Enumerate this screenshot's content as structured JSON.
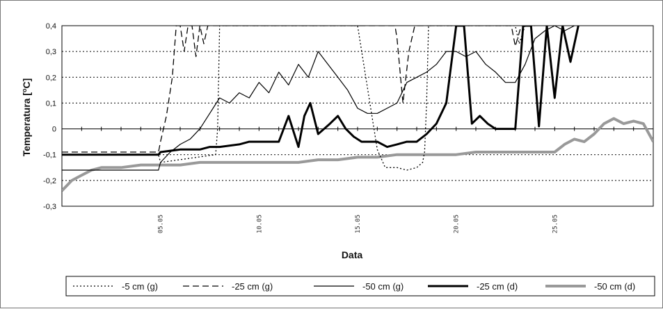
{
  "chart_data": {
    "type": "line",
    "xlabel": "Data",
    "ylabel_main": "Temperatura [",
    "ylabel_sup": "o",
    "ylabel_end": "C]",
    "ylim": [
      -0.3,
      0.4
    ],
    "xlim": [
      0,
      30
    ],
    "y_ticks": [
      {
        "value": 0.4,
        "label": "0,4"
      },
      {
        "value": 0.3,
        "label": "0,3"
      },
      {
        "value": 0.2,
        "label": "0,2"
      },
      {
        "value": 0.1,
        "label": "0,1"
      },
      {
        "value": 0.0,
        "label": "0"
      },
      {
        "value": -0.1,
        "label": "-0,1"
      },
      {
        "value": -0.2,
        "label": "-0,2"
      },
      {
        "value": -0.3,
        "label": "-0,3"
      }
    ],
    "x_ticks": [
      {
        "x": 5,
        "label": "05.05"
      },
      {
        "x": 10,
        "label": "10.05"
      },
      {
        "x": 15,
        "label": "15.05"
      },
      {
        "x": 20,
        "label": "20.05"
      },
      {
        "x": 25,
        "label": "25.05"
      }
    ],
    "grid": "horizontal-dotted",
    "legend_position": "bottom",
    "series": [
      {
        "name": "-5 cm (g)",
        "style": "dotted",
        "color": "#000000",
        "x": [
          0,
          4.9,
          5.0,
          7.8,
          7.9,
          8.0,
          14.9,
          15.0,
          16.0,
          16.4,
          17.0,
          17.5,
          18.0,
          18.3,
          18.4,
          18.5,
          18.6,
          23.0,
          23.2,
          23.5,
          24.0
        ],
        "y": [
          -0.1,
          -0.1,
          -0.13,
          -0.1,
          0.0,
          0.4,
          0.4,
          0.4,
          -0.08,
          -0.15,
          -0.15,
          -0.16,
          -0.15,
          -0.13,
          -0.09,
          0.1,
          0.4,
          0.4,
          0.33,
          0.4,
          0.4
        ]
      },
      {
        "name": "-25 cm (g)",
        "style": "dashed",
        "color": "#000000",
        "x": [
          0,
          4.9,
          5.0,
          5.3,
          5.6,
          5.8,
          6.0,
          6.2,
          6.4,
          6.6,
          6.8,
          7.0,
          7.2,
          7.4,
          16.9,
          17.0,
          17.3,
          17.6,
          17.9,
          22.8,
          23.0,
          23.3,
          23.6
        ],
        "y": [
          -0.09,
          -0.09,
          -0.05,
          0.05,
          0.2,
          0.4,
          0.4,
          0.3,
          0.4,
          0.4,
          0.28,
          0.4,
          0.33,
          0.4,
          0.4,
          0.35,
          0.1,
          0.3,
          0.4,
          0.4,
          0.32,
          0.4,
          0.4
        ]
      },
      {
        "name": "-50 cm (g)",
        "style": "solid",
        "color": "#000000",
        "x": [
          0,
          4.9,
          5.0,
          5.5,
          6.0,
          6.5,
          7.0,
          7.5,
          8.0,
          8.5,
          9.0,
          9.5,
          10.0,
          10.5,
          11.0,
          11.5,
          12.0,
          12.5,
          13.0,
          13.5,
          14.0,
          14.5,
          15.0,
          15.5,
          16.0,
          16.5,
          17.0,
          17.5,
          18.0,
          18.5,
          19.0,
          19.5,
          20.0,
          20.5,
          21.0,
          21.5,
          22.0,
          22.5,
          23.0,
          23.5,
          24.0,
          24.5,
          25.0,
          25.5,
          26.0
        ],
        "y": [
          -0.16,
          -0.16,
          -0.13,
          -0.09,
          -0.06,
          -0.04,
          0.0,
          0.06,
          0.12,
          0.1,
          0.14,
          0.12,
          0.18,
          0.14,
          0.22,
          0.17,
          0.25,
          0.2,
          0.3,
          0.25,
          0.2,
          0.15,
          0.08,
          0.06,
          0.06,
          0.08,
          0.1,
          0.18,
          0.2,
          0.22,
          0.25,
          0.3,
          0.3,
          0.28,
          0.3,
          0.25,
          0.22,
          0.18,
          0.18,
          0.25,
          0.35,
          0.38,
          0.4,
          0.38,
          0.4
        ]
      },
      {
        "name": "-25 cm (d)",
        "style": "thick",
        "color": "#000000",
        "x": [
          0,
          4.9,
          5.0,
          6.0,
          7.0,
          7.5,
          8.0,
          9.0,
          9.5,
          10.0,
          10.5,
          11.0,
          11.5,
          12.0,
          12.3,
          12.6,
          13.0,
          13.3,
          13.6,
          14.0,
          14.4,
          14.8,
          15.2,
          15.6,
          16.0,
          16.5,
          17.0,
          17.5,
          18.0,
          18.5,
          19.0,
          19.5,
          20.0,
          20.4,
          20.8,
          21.2,
          21.6,
          22.0,
          22.5,
          23.0,
          23.4,
          23.8,
          24.2,
          24.6,
          25.0,
          25.4,
          25.8,
          26.2
        ],
        "y": [
          -0.1,
          -0.1,
          -0.09,
          -0.08,
          -0.08,
          -0.07,
          -0.07,
          -0.06,
          -0.05,
          -0.05,
          -0.05,
          -0.05,
          0.05,
          -0.07,
          0.05,
          0.1,
          -0.02,
          0.0,
          0.02,
          0.05,
          0.0,
          -0.03,
          -0.05,
          -0.05,
          -0.05,
          -0.07,
          -0.06,
          -0.05,
          -0.05,
          -0.02,
          0.02,
          0.1,
          0.4,
          0.4,
          0.02,
          0.05,
          0.02,
          0.0,
          0.0,
          0.0,
          0.4,
          0.4,
          0.01,
          0.4,
          0.12,
          0.4,
          0.26,
          0.4
        ]
      },
      {
        "name": "-50 cm (d)",
        "style": "gray-thick",
        "color": "#999999",
        "x": [
          0,
          0.5,
          1.0,
          1.5,
          2.0,
          3.0,
          4.0,
          5.0,
          6.0,
          7.0,
          8.0,
          9.0,
          10.0,
          11.0,
          12.0,
          13.0,
          14.0,
          15.0,
          16.0,
          17.0,
          18.0,
          19.0,
          20.0,
          21.0,
          22.0,
          23.0,
          24.0,
          25.0,
          25.5,
          26.0,
          26.5,
          27.0,
          27.5,
          28.0,
          28.5,
          29.0,
          29.5,
          30.0
        ],
        "y": [
          -0.24,
          -0.2,
          -0.18,
          -0.16,
          -0.15,
          -0.15,
          -0.14,
          -0.14,
          -0.14,
          -0.13,
          -0.13,
          -0.13,
          -0.13,
          -0.13,
          -0.13,
          -0.12,
          -0.12,
          -0.11,
          -0.11,
          -0.1,
          -0.1,
          -0.1,
          -0.1,
          -0.09,
          -0.09,
          -0.09,
          -0.09,
          -0.09,
          -0.06,
          -0.04,
          -0.05,
          -0.02,
          0.02,
          0.04,
          0.02,
          0.03,
          0.02,
          -0.05
        ]
      }
    ]
  }
}
